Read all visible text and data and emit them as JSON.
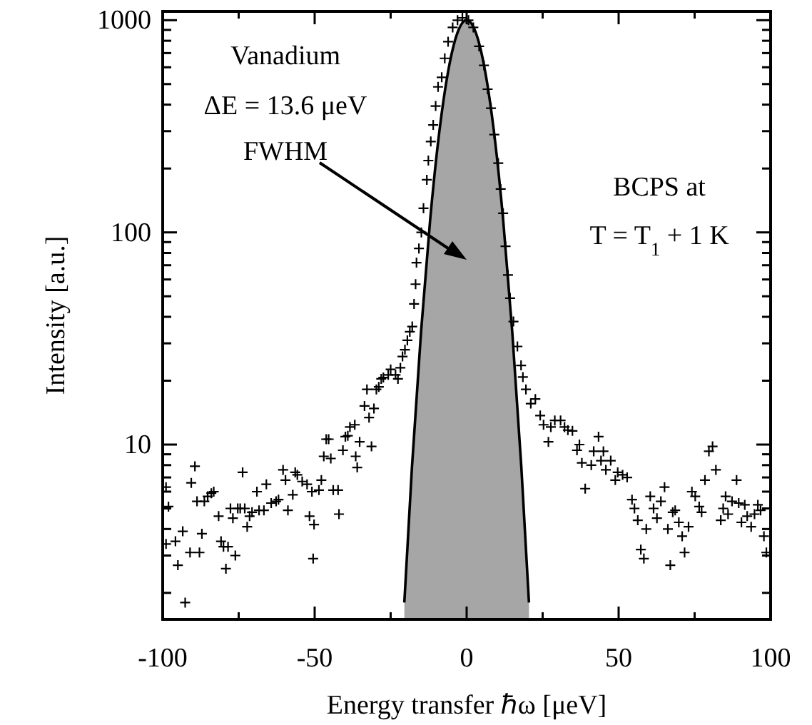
{
  "chart_data": {
    "type": "scatter",
    "xlabel": "Energy transfer ℏω [μeV]",
    "ylabel": "Intensity [a.u.]",
    "log": "y",
    "marker": "cross",
    "xlim": [
      -100,
      100
    ],
    "xticks": [
      -100,
      {
        "value": -75,
        "label": null
      },
      -50,
      {
        "value": -25,
        "label": null
      },
      0,
      {
        "value": 25,
        "label": null
      },
      50,
      {
        "value": 75,
        "label": null
      },
      100
    ],
    "ylim": [
      1.5,
      1100
    ],
    "yticks": [
      {
        "value": 2,
        "label": null
      },
      {
        "value": 3,
        "label": null
      },
      {
        "value": 4,
        "label": null
      },
      {
        "value": 5,
        "label": null
      },
      {
        "value": 6,
        "label": null
      },
      {
        "value": 7,
        "label": null
      },
      {
        "value": 8,
        "label": null
      },
      {
        "value": 9,
        "label": null
      },
      10,
      {
        "value": 20,
        "label": null
      },
      {
        "value": 30,
        "label": null
      },
      {
        "value": 40,
        "label": null
      },
      {
        "value": 50,
        "label": null
      },
      {
        "value": 60,
        "label": null
      },
      {
        "value": 70,
        "label": null
      },
      {
        "value": 80,
        "label": null
      },
      {
        "value": 90,
        "label": null
      },
      100,
      {
        "value": 200,
        "label": null
      },
      {
        "value": 300,
        "label": null
      },
      {
        "value": 400,
        "label": null
      },
      {
        "value": 500,
        "label": null
      },
      {
        "value": 600,
        "label": null
      },
      {
        "value": 700,
        "label": null
      },
      {
        "value": 800,
        "label": null
      },
      {
        "value": 900,
        "label": null
      },
      1000
    ],
    "annotations": [
      "Vanadium",
      "ΔE = 13.6 μeV",
      "FWHM",
      "BCPS at",
      "T = T$_{1}$ + 1 K"
    ],
    "series": [
      {
        "type": "area",
        "marker": "none",
        "color": "#a6a6a6",
        "x": [
          -20.5,
          -18,
          -15,
          -12,
          -9,
          -6,
          -3,
          0,
          3,
          6,
          9,
          12,
          15,
          18,
          20.5
        ],
        "values": [
          1.8,
          7.8,
          34,
          115,
          297,
          583,
          874,
          1000,
          874,
          583,
          297,
          115,
          34,
          7.8,
          1.8
        ]
      },
      {
        "color": "#000000",
        "x": [
          -98.9,
          -98.1,
          -98.9,
          -95.8,
          -95.0,
          -93.4,
          -92.6,
          -90.6,
          -89.4,
          -88.7,
          -91.0,
          -87.9,
          -87.1,
          -86.3,
          -85.2,
          -84.0,
          -83.2,
          -81.6,
          -80.8,
          -80.0,
          -79.2,
          -78.5,
          -77.7,
          -76.9,
          -76.1,
          -75.3,
          -73.7,
          -74.5,
          -73.0,
          -72.2,
          -71.4,
          -70.6,
          -69.0,
          -68.3,
          -66.7,
          -65.9,
          -64.3,
          -62.7,
          -61.9,
          -60.4,
          -59.6,
          -58.8,
          -57.2,
          -56.4,
          -55.7,
          -54.1,
          -52.5,
          -51.7,
          -50.9,
          -50.2,
          -50.5,
          -48.6,
          -47.8,
          -47.0,
          -46.2,
          -45.4,
          -44.7,
          -43.9,
          -42.3,
          -42.0,
          -40.7,
          -39.9,
          -39.1,
          -38.4,
          -36.8,
          -36.5,
          -36.0,
          -35.2,
          -33.6,
          -32.8,
          -32.1,
          -31.3,
          -30.5,
          -29.7,
          -28.9,
          -28.1,
          -27.4,
          -25.8,
          -25.0,
          -23.4,
          -22.6,
          -21.8,
          -21.1,
          -20.3,
          -19.5,
          -18.7,
          -17.9,
          -17.3,
          -16.8,
          -16.5,
          -15.7,
          -14.9,
          -14.2,
          -13.1,
          -12.6,
          -11.8,
          -11.0,
          -10.2,
          -9.4,
          -8.2,
          -7.2,
          -6.1,
          -4.6,
          -3.0,
          -1.4,
          0.6,
          2.2,
          4.1,
          5.7,
          6.9,
          8.0,
          9.1,
          10.4,
          11.2,
          12.0,
          12.8,
          13.6,
          14.3,
          15.4,
          16.7,
          17.9,
          18.5,
          19.5,
          21.1,
          22.6,
          24.2,
          25.3,
          26.9,
          27.7,
          29.0,
          30.9,
          32.2,
          33.3,
          34.8,
          36.3,
          37.1,
          37.9,
          39.0,
          41.0,
          41.8,
          43.4,
          44.2,
          45.0,
          45.8,
          47.4,
          48.9,
          49.7,
          51.3,
          52.8,
          54.4,
          55.2,
          56.3,
          57.3,
          58.3,
          59.1,
          60.4,
          61.5,
          62.6,
          63.9,
          65.1,
          66.2,
          67.0,
          67.8,
          68.6,
          69.8,
          70.9,
          71.7,
          73.0,
          74.1,
          75.2,
          76.5,
          77.3,
          78.4,
          79.7,
          80.9,
          82.0,
          83.6,
          84.4,
          85.2,
          86.0,
          87.3,
          88.8,
          89.5,
          90.4,
          91.5,
          92.3,
          93.6,
          94.7,
          95.8,
          96.7,
          97.8,
          98.6
        ],
        "values": [
          6.3,
          5.1,
          3.4,
          3.5,
          2.7,
          3.9,
          1.8,
          6.6,
          7.9,
          5.4,
          3.1,
          3.1,
          3.8,
          5.4,
          5.7,
          5.9,
          6.0,
          4.6,
          3.5,
          3.3,
          2.6,
          3.3,
          5.0,
          4.5,
          3.0,
          5.0,
          7.4,
          5.0,
          5.0,
          4.1,
          4.6,
          4.8,
          6.0,
          4.9,
          4.9,
          6.5,
          5.3,
          5.4,
          5.5,
          7.6,
          6.8,
          4.9,
          5.8,
          7.4,
          7.2,
          6.7,
          6.5,
          4.6,
          6.0,
          4.2,
          2.9,
          6.1,
          6.8,
          8.8,
          10.6,
          10.6,
          8.6,
          6.1,
          6.1,
          4.7,
          9.4,
          10.9,
          11.0,
          12.1,
          12.4,
          8.8,
          7.8,
          10.3,
          15.2,
          18.2,
          13.4,
          9.8,
          14.8,
          18.2,
          18.7,
          20.4,
          20.7,
          21.3,
          22.6,
          21.3,
          20.4,
          23,
          26,
          28,
          31,
          34,
          36,
          46,
          57,
          72,
          84,
          100,
          130,
          177,
          218,
          268,
          321,
          394,
          485,
          538,
          661,
          792,
          925,
          1000,
          1026,
          1000,
          925,
          753,
          612,
          473,
          385,
          289,
          212,
          160,
          123,
          86,
          63,
          49,
          38,
          29,
          23.6,
          20.8,
          18.2,
          15.6,
          16.4,
          13.7,
          12.4,
          10.3,
          12.1,
          13.0,
          13.0,
          12.1,
          11.7,
          11.6,
          9.4,
          10.0,
          8.2,
          6.2,
          8.0,
          9.3,
          10.9,
          8.4,
          9.3,
          7.6,
          8.4,
          6.8,
          7.4,
          7.2,
          7.0,
          5.5,
          5.0,
          4.4,
          3.2,
          2.9,
          4.0,
          5.7,
          5.0,
          4.5,
          5.4,
          6.3,
          4.0,
          2.7,
          4.8,
          4.9,
          4.3,
          3.7,
          3.1,
          4.1,
          6.0,
          5.7,
          5.1,
          4.8,
          6.8,
          9.3,
          9.8,
          7.6,
          4.4,
          5.0,
          5.7,
          4.7,
          5.4,
          6.8,
          5.3,
          4.3,
          5.2,
          4.6,
          4.1,
          4.7,
          5.2,
          4.9,
          3.7,
          3.1
        ]
      }
    ]
  }
}
